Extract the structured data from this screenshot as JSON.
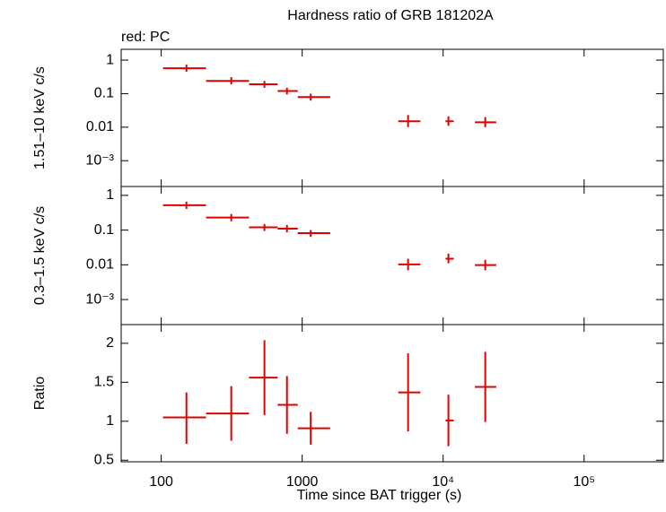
{
  "chart_data": [
    {
      "type": "errorbar",
      "title": "Hardness ratio of GRB 181202A",
      "subtitle": "red: PC",
      "ylabel": "1.51–10 keV c/s",
      "color": "#e00000",
      "xlog": true,
      "ylog": true,
      "xlim": [
        52,
        370000
      ],
      "xticks": [
        100,
        1000,
        {
          "value": 10000,
          "label": "10⁴"
        },
        {
          "value": 100000,
          "label": "10⁵"
        }
      ],
      "ylim": [
        0.00017,
        2.1
      ],
      "yticks": [
        1,
        0.1,
        0.01,
        {
          "value": 0.001,
          "label": "10⁻³"
        }
      ],
      "x": [
        151,
        314,
        540,
        780,
        1150,
        5640,
        10900,
        19900
      ],
      "x_low": [
        103,
        208,
        420,
        670,
        930,
        4800,
        10400,
        16800
      ],
      "x_high": [
        208,
        420,
        670,
        930,
        1580,
        6900,
        11900,
        23800
      ],
      "values": [
        0.57,
        0.24,
        0.19,
        0.12,
        0.079,
        0.015,
        0.015,
        0.014
      ],
      "y_low": [
        0.45,
        0.19,
        0.15,
        0.094,
        0.062,
        0.01,
        0.011,
        0.01
      ],
      "y_high": [
        0.73,
        0.31,
        0.24,
        0.15,
        0.1,
        0.023,
        0.021,
        0.02
      ]
    },
    {
      "type": "errorbar",
      "ylabel": "0.3–1.5 keV c/s",
      "color": "#e00000",
      "xlog": true,
      "ylog": true,
      "xlim": [
        52,
        370000
      ],
      "xticks": [
        100,
        1000,
        10000,
        100000
      ],
      "ylim": [
        0.00019,
        1.8
      ],
      "yticks": [
        1,
        0.1,
        0.01,
        {
          "value": 0.001,
          "label": "10⁻³"
        }
      ],
      "x": [
        151,
        314,
        540,
        780,
        1150,
        5640,
        10900,
        19900
      ],
      "x_low": [
        103,
        208,
        420,
        670,
        930,
        4800,
        10400,
        16800
      ],
      "x_high": [
        208,
        420,
        670,
        930,
        1580,
        6900,
        11900,
        23800
      ],
      "values": [
        0.52,
        0.23,
        0.12,
        0.11,
        0.082,
        0.0103,
        0.015,
        0.0098
      ],
      "y_low": [
        0.41,
        0.18,
        0.094,
        0.086,
        0.064,
        0.007,
        0.011,
        0.007
      ],
      "y_high": [
        0.66,
        0.29,
        0.15,
        0.14,
        0.1,
        0.015,
        0.021,
        0.014
      ]
    },
    {
      "type": "errorbar",
      "ylabel": "Ratio",
      "xlabel": "Time since BAT trigger (s)",
      "color": "#e00000",
      "xlog": true,
      "ylog": false,
      "xlim": [
        52,
        370000
      ],
      "xticks": [
        100,
        1000,
        {
          "value": 10000,
          "label": "10⁴"
        },
        {
          "value": 100000,
          "label": "10⁵"
        }
      ],
      "ylim": [
        0.48,
        2.24
      ],
      "yticks": [
        0.5,
        1,
        1.5,
        2
      ],
      "x": [
        151,
        314,
        540,
        780,
        1150,
        5640,
        10900,
        19900
      ],
      "x_low": [
        103,
        208,
        420,
        670,
        930,
        4800,
        10400,
        16800
      ],
      "x_high": [
        208,
        420,
        670,
        930,
        1580,
        6900,
        11900,
        23800
      ],
      "values": [
        1.05,
        1.1,
        1.56,
        1.21,
        0.91,
        1.37,
        1.01,
        1.44
      ],
      "y_low": [
        0.71,
        0.75,
        1.08,
        0.84,
        0.7,
        0.87,
        0.68,
        0.99
      ],
      "y_high": [
        1.37,
        1.45,
        2.04,
        1.58,
        1.12,
        1.87,
        1.34,
        1.89
      ]
    }
  ]
}
